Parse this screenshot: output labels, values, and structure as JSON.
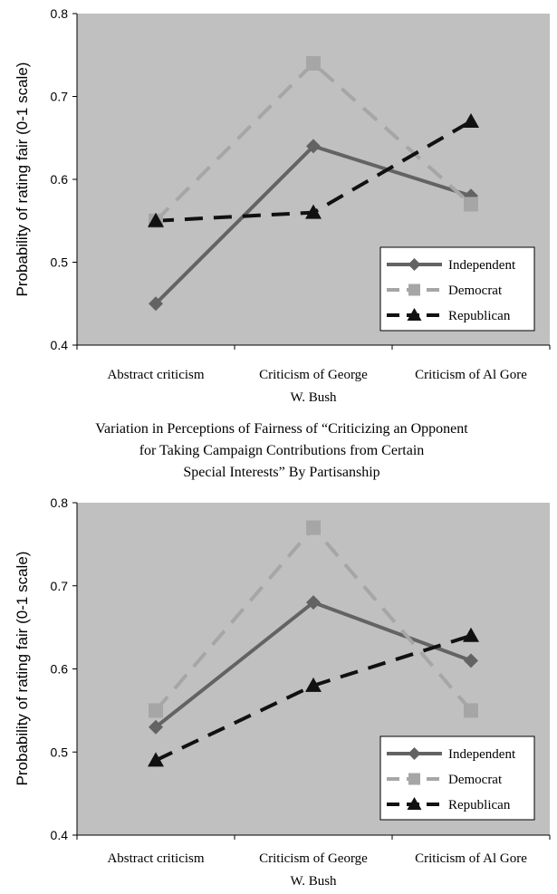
{
  "chart_data": [
    {
      "type": "line",
      "categories": [
        "Abstract criticism",
        "Criticism of George",
        "Criticism of Al Gore"
      ],
      "category_label_line2": "W. Bush",
      "ylabel": "Probability of rating fair (0-1 scale)",
      "ylim": [
        0.4,
        0.8
      ],
      "yticks": [
        "0.4",
        "0.5",
        "0.6",
        "0.7",
        "0.8"
      ],
      "grid": false,
      "legend_position": "bottom-right",
      "plot_background": "#c0c0c0",
      "series": [
        {
          "name": "Independent",
          "values": [
            0.45,
            0.64,
            0.58
          ],
          "color": "#636363",
          "dash": "solid",
          "marker": "diamond"
        },
        {
          "name": "Democrat",
          "values": [
            0.55,
            0.74,
            0.57
          ],
          "color": "#a6a6a6",
          "dash": "dashed",
          "marker": "square"
        },
        {
          "name": "Republican",
          "values": [
            0.55,
            0.56,
            0.67
          ],
          "color": "#111111",
          "dash": "dashed",
          "marker": "triangle"
        }
      ]
    },
    {
      "type": "line",
      "title_lines": [
        "Variation in Perceptions of Fairness of “Criticizing an Opponent",
        "for  Taking Campaign  Contributions from Certain",
        "Special Interests” By Partisanship"
      ],
      "categories": [
        "Abstract criticism",
        "Criticism of George",
        "Criticism of Al Gore"
      ],
      "category_label_line2": "W. Bush",
      "ylabel": "Probability of rating fair (0-1 scale)",
      "ylim": [
        0.4,
        0.8
      ],
      "yticks": [
        "0.4",
        "0.5",
        "0.6",
        "0.7",
        "0.8"
      ],
      "grid": false,
      "legend_position": "bottom-right",
      "plot_background": "#c0c0c0",
      "series": [
        {
          "name": "Independent",
          "values": [
            0.53,
            0.68,
            0.61
          ],
          "color": "#636363",
          "dash": "solid",
          "marker": "diamond"
        },
        {
          "name": "Democrat",
          "values": [
            0.55,
            0.77,
            0.55
          ],
          "color": "#a6a6a6",
          "dash": "dashed",
          "marker": "square"
        },
        {
          "name": "Republican",
          "values": [
            0.49,
            0.58,
            0.64
          ],
          "color": "#111111",
          "dash": "dashed",
          "marker": "triangle"
        }
      ]
    }
  ]
}
